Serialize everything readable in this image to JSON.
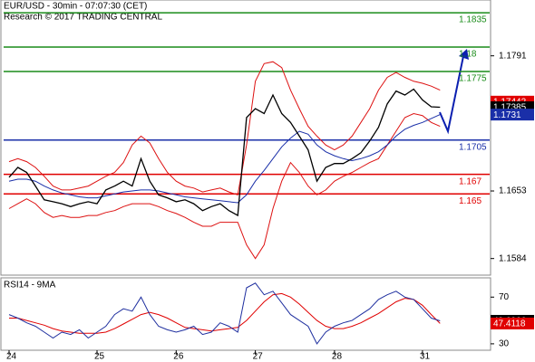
{
  "chart_data": [
    {
      "type": "line",
      "title": "EUR/USD - 30min - 07:07:30 (CET)",
      "subtitle": "Research © 2017 TRADING CENTRAL",
      "ylim": [
        1.1568,
        1.1848
      ],
      "yticks": [
        1.1791,
        1.1653,
        1.1584
      ],
      "series": [
        {
          "color": "#dd1111",
          "values": [
            1.1683,
            1.1686,
            1.1683,
            1.1677,
            1.1668,
            1.1658,
            1.1654,
            1.1654,
            1.1656,
            1.1658,
            1.1663,
            1.1668,
            1.1672,
            1.1682,
            1.17,
            1.1709,
            1.1702,
            1.1686,
            1.1672,
            1.1663,
            1.1658,
            1.1656,
            1.1652,
            1.1654,
            1.1656,
            1.1652,
            1.1649,
            1.17,
            1.1765,
            1.1783,
            1.1785,
            1.1779,
            1.1756,
            1.1737,
            1.1719,
            1.1709,
            1.17,
            1.1695,
            1.17,
            1.1709,
            1.1723,
            1.1737,
            1.1756,
            1.1769,
            1.1774,
            1.1769,
            1.1765,
            1.1763,
            1.176,
            1.1756
          ]
        },
        {
          "color": "#dd1111",
          "values": [
            1.1635,
            1.164,
            1.1645,
            1.164,
            1.1631,
            1.1626,
            1.1628,
            1.1626,
            1.1626,
            1.1628,
            1.1628,
            1.1631,
            1.1633,
            1.1637,
            1.164,
            1.164,
            1.164,
            1.1637,
            1.1633,
            1.163,
            1.1626,
            1.1621,
            1.1617,
            1.1617,
            1.1621,
            1.1621,
            1.1621,
            1.1598,
            1.1584,
            1.1598,
            1.1635,
            1.1663,
            1.1682,
            1.1672,
            1.1658,
            1.1649,
            1.1654,
            1.1663,
            1.1668,
            1.1672,
            1.1677,
            1.1682,
            1.1686,
            1.17,
            1.1714,
            1.1728,
            1.1732,
            1.173,
            1.1723,
            1.1719
          ]
        },
        {
          "color": "#1a2fa8",
          "values": [
            1.1663,
            1.1665,
            1.1665,
            1.1663,
            1.1658,
            1.1654,
            1.1651,
            1.1649,
            1.1647,
            1.1646,
            1.1646,
            1.1648,
            1.165,
            1.1652,
            1.1653,
            1.1654,
            1.1654,
            1.1653,
            1.1651,
            1.1649,
            1.1647,
            1.1646,
            1.1645,
            1.1644,
            1.1643,
            1.1642,
            1.1641,
            1.1649,
            1.1663,
            1.1674,
            1.1686,
            1.1698,
            1.1707,
            1.1714,
            1.1711,
            1.17,
            1.1693,
            1.1689,
            1.1686,
            1.1684,
            1.1686,
            1.1689,
            1.1693,
            1.17,
            1.1709,
            1.1716,
            1.172,
            1.1723,
            1.1727,
            1.1731
          ]
        },
        {
          "color": "#000000",
          "values": [
            1.1667,
            1.1677,
            1.1672,
            1.1658,
            1.1644,
            1.1642,
            1.164,
            1.1637,
            1.164,
            1.1642,
            1.164,
            1.1654,
            1.1658,
            1.1663,
            1.1658,
            1.1686,
            1.1663,
            1.1649,
            1.1646,
            1.1642,
            1.1644,
            1.164,
            1.1633,
            1.1637,
            1.164,
            1.1633,
            1.1628,
            1.1728,
            1.1737,
            1.1732,
            1.1751,
            1.1732,
            1.1723,
            1.1709,
            1.1695,
            1.1663,
            1.1677,
            1.1681,
            1.1681,
            1.1686,
            1.1692,
            1.1704,
            1.1718,
            1.1742,
            1.1755,
            1.1751,
            1.1757,
            1.1746,
            1.1739,
            1.17385
          ]
        }
      ],
      "levels": [
        {
          "value": 1.1835,
          "color": "#1a8c1a"
        },
        {
          "value": 1.18,
          "color": "#1a8c1a"
        },
        {
          "value": 1.1775,
          "color": "#1a8c1a"
        },
        {
          "value": 1.1705,
          "color": "#1a2fa8"
        },
        {
          "value": 1.167,
          "color": "#e00000"
        },
        {
          "value": 1.165,
          "color": "#e00000"
        }
      ],
      "markers": [
        {
          "value": 1.17442,
          "color": "#e00000"
        },
        {
          "value": 1.17385,
          "color": "#000000"
        },
        {
          "value": 1.1731,
          "color": "#1a2fa8"
        }
      ]
    },
    {
      "type": "line",
      "title": "RSI14 - 9MA",
      "categories": [
        "24",
        null,
        null,
        null,
        null,
        null,
        null,
        null,
        null,
        null,
        "25",
        null,
        null,
        null,
        null,
        null,
        null,
        null,
        null,
        "26",
        null,
        null,
        null,
        null,
        null,
        null,
        null,
        null,
        "27",
        null,
        null,
        null,
        null,
        null,
        null,
        null,
        null,
        "28",
        null,
        null,
        null,
        null,
        null,
        null,
        null,
        null,
        null,
        "31",
        null,
        null
      ],
      "ylim": [
        24.5,
        86.5
      ],
      "yticks": [
        70,
        30
      ],
      "series": [
        {
          "color": "#e00000",
          "values": [
            52,
            52,
            50,
            48,
            46,
            43,
            41,
            40,
            39,
            39,
            39,
            40,
            43,
            47,
            51,
            55,
            57,
            55,
            52,
            48,
            44,
            43,
            42,
            41,
            42,
            43,
            44,
            50,
            58,
            66,
            72,
            73,
            70,
            64,
            57,
            50,
            45,
            43,
            43,
            45,
            48,
            52,
            56,
            61,
            66,
            69,
            68,
            63,
            55,
            47.4118
          ]
        },
        {
          "color": "#1f2f9f",
          "values": [
            55,
            52,
            48,
            45,
            40,
            35,
            40,
            38,
            42,
            35,
            40,
            45,
            55,
            60,
            58,
            70,
            55,
            45,
            42,
            40,
            42,
            45,
            38,
            40,
            48,
            45,
            40,
            78,
            82,
            72,
            75,
            65,
            55,
            50,
            45,
            30,
            40,
            45,
            48,
            50,
            55,
            60,
            68,
            72,
            75,
            70,
            68,
            60,
            52,
            49.6966
          ]
        }
      ],
      "markers": [
        {
          "value": 49.6966,
          "color": "#000000"
        },
        {
          "value": 47.4118,
          "color": "#e00000"
        }
      ]
    }
  ]
}
